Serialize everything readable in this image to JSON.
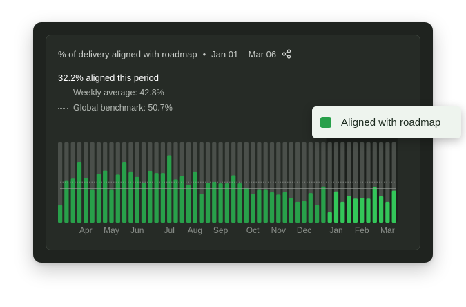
{
  "header": {
    "title": "% of delivery aligned with roadmap",
    "separator": "•",
    "date_range": "Jan 01 – Mar 06"
  },
  "summary": {
    "headline": "32.2% aligned this period",
    "weekly_average_label": "Weekly average: 42.8%",
    "global_benchmark_label": "Global benchmark: 50.7%"
  },
  "tooltip": {
    "label": "Aligned with roadmap",
    "color": "#28a04a"
  },
  "colors": {
    "bar": "#28a04a",
    "bar_highlight": "#33c659",
    "track": "#4a4f4a",
    "highlight_region": "#1c201c"
  },
  "icons": {
    "share": "share-icon"
  },
  "chart_data": {
    "type": "bar",
    "ylim": [
      0,
      100
    ],
    "weekly_average": 42.8,
    "global_benchmark": 50.7,
    "highlight_start_index": 42,
    "month_labels": [
      "Apr",
      "May",
      "Jun",
      "Jul",
      "Aug",
      "Sep",
      "Oct",
      "Nov",
      "Dec",
      "Jan",
      "Feb",
      "Mar"
    ],
    "month_label_bar_index": [
      4,
      8,
      12,
      17,
      21,
      25,
      30,
      34,
      38,
      43,
      47,
      51
    ],
    "series": [
      {
        "values": [
          22,
          52,
          55,
          75,
          56,
          41,
          61,
          65,
          41,
          60,
          75,
          63,
          57,
          50,
          64,
          62,
          62,
          84,
          54,
          58,
          47,
          63,
          36,
          50,
          51,
          49,
          49,
          59,
          49,
          43,
          36,
          41,
          41,
          38,
          35,
          38,
          31,
          26,
          27,
          37,
          22,
          45,
          13,
          39,
          26,
          33,
          30,
          31,
          30,
          44,
          33,
          26,
          40
        ]
      }
    ]
  }
}
